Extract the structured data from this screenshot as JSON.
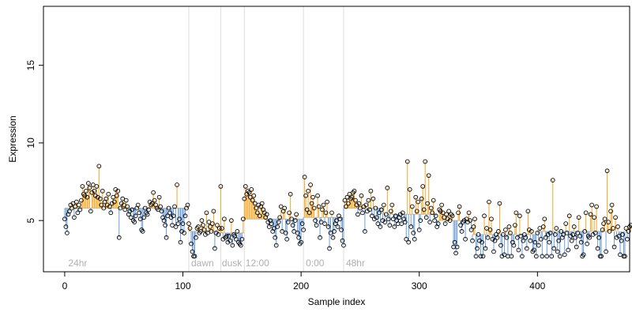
{
  "chart_data": {
    "type": "scatter",
    "xlabel": "Sample index",
    "ylabel": "Expression",
    "xlim": [
      -18,
      478
    ],
    "ylim": [
      1.7,
      18.8
    ],
    "x_ticks": [
      0,
      100,
      200,
      300,
      400
    ],
    "y_ticks": [
      5,
      10,
      15
    ],
    "grid": false,
    "group_boundaries": [
      105,
      132,
      152,
      202,
      236
    ],
    "group_labels": [
      {
        "label": "24hr",
        "x": 3
      },
      {
        "label": "dawn",
        "x": 107
      },
      {
        "label": "dusk",
        "x": 133
      },
      {
        "label": "12:00",
        "x": 153
      },
      {
        "label": "0:00",
        "x": 204
      },
      {
        "label": "48hr",
        "x": 238
      }
    ],
    "colors": {
      "above": "#f5a623",
      "below": "#6f9fd8",
      "baseline": "#c0c0c0",
      "boundary": "#dddddd",
      "point_stroke": "#000000"
    },
    "groups": [
      {
        "start": 0,
        "end": 105,
        "mean": 5.8
      },
      {
        "start": 105,
        "end": 132,
        "mean": 4.3
      },
      {
        "start": 132,
        "end": 152,
        "mean": 4.2
      },
      {
        "start": 152,
        "end": 202,
        "mean": 5.1
      },
      {
        "start": 202,
        "end": 236,
        "mean": 5.2
      },
      {
        "start": 236,
        "end": 270,
        "mean": 5.8
      },
      {
        "start": 270,
        "end": 315,
        "mean": 5.4
      },
      {
        "start": 315,
        "end": 345,
        "mean": 5.0
      },
      {
        "start": 345,
        "end": 400,
        "mean": 4.1
      },
      {
        "start": 400,
        "end": 462,
        "mean": 4.3
      }
    ],
    "y": [
      5.1,
      4.6,
      4.2,
      5.4,
      5.6,
      6.0,
      5.8,
      6.1,
      5.2,
      5.9,
      6.2,
      5.5,
      6.0,
      5.7,
      6.3,
      7.2,
      6.7,
      6.6,
      6.9,
      6.5,
      7.4,
      7.1,
      5.6,
      6.8,
      7.3,
      6.9,
      6.6,
      7.2,
      6.5,
      8.5,
      6.4,
      6.0,
      6.9,
      5.8,
      6.2,
      6.4,
      6.0,
      6.7,
      5.9,
      5.5,
      6.1,
      6.5,
      6.2,
      7.0,
      6.6,
      6.9,
      3.9,
      5.8,
      6.1,
      6.4,
      6.0,
      5.7,
      6.3,
      5.9,
      5.4,
      5.6,
      5.2,
      5.7,
      5.0,
      4.9,
      5.3,
      5.8,
      6.0,
      5.5,
      5.1,
      4.4,
      4.3,
      5.2,
      5.8,
      5.5,
      5.4,
      5.7,
      6.2,
      6.0,
      6.1,
      6.8,
      6.3,
      6.0,
      5.8,
      5.7,
      6.5,
      5.9,
      5.6,
      5.2,
      5.0,
      4.7,
      3.9,
      5.3,
      5.8,
      5.5,
      5.2,
      4.7,
      5.3,
      5.9,
      4.6,
      7.3,
      4.8,
      5.1,
      3.6,
      4.3,
      4.8,
      4.2,
      5.3,
      5.8,
      6.0,
      4.8,
      4.5,
      3.5,
      3.0,
      2.7,
      2.7,
      3.9,
      4.5,
      4.6,
      4.2,
      4.3,
      5.0,
      4.7,
      4.4,
      4.1,
      5.5,
      4.2,
      4.9,
      4.6,
      4.3,
      4.8,
      5.6,
      3.2,
      4.2,
      4.7,
      4.1,
      4.5,
      7.2,
      4.5,
      3.8,
      5.1,
      3.9,
      4.0,
      3.6,
      4.0,
      3.7,
      5.0,
      3.4,
      4.1,
      4.0,
      3.8,
      4.3,
      3.6,
      3.5,
      3.4,
      3.8,
      5.1,
      6.4,
      7.2,
      6.7,
      6.9,
      6.8,
      6.5,
      7.0,
      6.3,
      6.6,
      6.1,
      5.8,
      5.5,
      6.0,
      5.3,
      5.9,
      6.1,
      5.7,
      5.5,
      5.2,
      5.4,
      4.9,
      4.6,
      5.0,
      4.8,
      4.3,
      4.5,
      3.9,
      3.4,
      4.6,
      4.9,
      5.2,
      5.9,
      4.3,
      5.6,
      5.8,
      4.2,
      3.8,
      4.9,
      5.5,
      6.7,
      5.1,
      4.7,
      4.3,
      5.0,
      5.4,
      4.2,
      3.9,
      3.5,
      3.6,
      4.8,
      4.4,
      7.8,
      6.6,
      5.7,
      6.9,
      5.5,
      7.3,
      6.1,
      6.5,
      5.8,
      5.0,
      4.7,
      6.6,
      5.9,
      3.9,
      4.9,
      5.7,
      6.0,
      4.8,
      5.5,
      6.2,
      4.6,
      3.2,
      4.2,
      5.5,
      3.9,
      4.3,
      4.8,
      5.0,
      4.6,
      5.3,
      5.1,
      4.4,
      3.7,
      3.4,
      6.3,
      5.9,
      6.5,
      6.1,
      6.7,
      6.4,
      6.5,
      6.8,
      6.9,
      6.3,
      6.0,
      5.4,
      6.1,
      5.8,
      6.6,
      5.5,
      5.9,
      4.3,
      6.0,
      5.6,
      6.3,
      5.7,
      6.9,
      5.3,
      6.4,
      5.1,
      5.8,
      5.2,
      4.8,
      5.5,
      4.6,
      5.7,
      5.0,
      6.0,
      4.9,
      5.4,
      7.1,
      5.1,
      4.7,
      5.6,
      6.0,
      5.1,
      4.6,
      5.3,
      5.0,
      4.8,
      5.2,
      5.4,
      4.8,
      5.5,
      5.1,
      4.9,
      3.8,
      8.8,
      3.6,
      7.0,
      4.6,
      5.9,
      4.2,
      3.8,
      6.5,
      5.6,
      6.2,
      4.4,
      5.0,
      6.4,
      7.2,
      5.7,
      8.8,
      5.2,
      6.1,
      7.9,
      4.9,
      5.8,
      5.5,
      6.3,
      5.0,
      5.3,
      4.6,
      4.8,
      5.7,
      5.6,
      6.0,
      5.5,
      5.2,
      4.8,
      5.4,
      5.1,
      5.6,
      5.0,
      5.4,
      5.3,
      3.3,
      3.6,
      2.9,
      3.3,
      5.5,
      5.9,
      4.7,
      4.3,
      4.9,
      5.0,
      3.8,
      5.1,
      4.9,
      5.5,
      5.0,
      4.4,
      3.7,
      4.6,
      5.1,
      2.7,
      3.2,
      4.1,
      3.7,
      2.7,
      3.6,
      2.7,
      5.3,
      3.2,
      4.5,
      3.9,
      6.2,
      4.4,
      5.1,
      3.8,
      3.0,
      3.7,
      4.1,
      3.9,
      4.3,
      6.1,
      3.4,
      2.7,
      4.1,
      2.8,
      4.4,
      3.9,
      2.7,
      4.6,
      4.2,
      2.7,
      3.6,
      3.4,
      4.7,
      5.5,
      3.9,
      3.1,
      5.3,
      4.0,
      2.7,
      3.7,
      4.1,
      3.9,
      3.2,
      5.6,
      4.4,
      3.7,
      4.3,
      3.0,
      3.1,
      3.6,
      2.7,
      4.2,
      3.4,
      4.5,
      3.8,
      2.7,
      4.6,
      5.1,
      3.9,
      2.7,
      4.1,
      3.6,
      4.2,
      2.7,
      7.6,
      3.2,
      4.1,
      4.5,
      3.0,
      3.7,
      2.7,
      4.3,
      3.9,
      4.1,
      2.8,
      4.8,
      4.2,
      3.1,
      5.3,
      4.0,
      3.7,
      4.1,
      4.6,
      3.9,
      3.3,
      4.2,
      5.2,
      4.0,
      3.6,
      2.7,
      2.8,
      4.3,
      5.5,
      3.5,
      4.0,
      3.9,
      5.4,
      6.0,
      4.1,
      5.2,
      4.2,
      5.9,
      3.2,
      3.9,
      2.7,
      2.7,
      4.4,
      4.8,
      5.1,
      3.0,
      8.2,
      4.9,
      4.3,
      5.6,
      6.0,
      4.5,
      3.3,
      5.2,
      3.9,
      4.6,
      4.0,
      2.8,
      3.7,
      4.1,
      2.7,
      2.7,
      4.5,
      3.8,
      4.3,
      4.6,
      4.7
    ]
  }
}
